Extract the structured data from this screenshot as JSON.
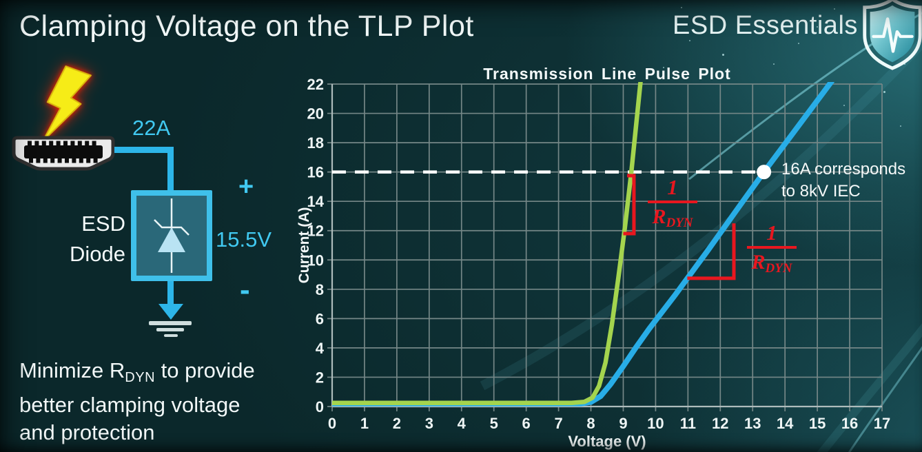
{
  "slide": {
    "title": "Clamping Voltage on the TLP Plot",
    "brand": "ESD Essentials"
  },
  "note": {
    "pre": "Minimize R",
    "sub": "DYN",
    "post": " to provide",
    "line2": "better clamping voltage",
    "line3": "and protection"
  },
  "diagram": {
    "surge_current": "22A",
    "device_line1": "ESD",
    "device_line2": "Diode",
    "plus_sign": "+",
    "minus_sign": "-",
    "clamp_voltage": "15.5V"
  },
  "chart_data": {
    "type": "line",
    "title": "Transmission Line Pulse Plot",
    "xlabel": "Voltage (V)",
    "ylabel": "Current (A)",
    "xlim": [
      0,
      17
    ],
    "ylim": [
      0,
      22
    ],
    "x_ticks": [
      0,
      1,
      2,
      3,
      4,
      5,
      6,
      7,
      8,
      9,
      10,
      11,
      12,
      13,
      14,
      15,
      16,
      17
    ],
    "y_ticks": [
      0,
      2,
      4,
      6,
      8,
      10,
      12,
      14,
      16,
      18,
      20,
      22
    ],
    "grid": true,
    "colors": {
      "grid": "#758787",
      "axis": "#aebcbc",
      "accent_red": "#e8171f",
      "reference": "#ffffff"
    },
    "series": [
      {
        "name": "green-curve-low-rdyn",
        "color": "#a4d44e",
        "width": 6.5,
        "points": [
          [
            0,
            0.25
          ],
          [
            7.4,
            0.25
          ],
          [
            7.8,
            0.32
          ],
          [
            8.05,
            0.6
          ],
          [
            8.25,
            1.4
          ],
          [
            8.45,
            3.0
          ],
          [
            8.65,
            5.6
          ],
          [
            8.85,
            8.8
          ],
          [
            9.05,
            12.2
          ],
          [
            9.25,
            16.0
          ],
          [
            9.55,
            22.5
          ]
        ]
      },
      {
        "name": "blue-curve-high-rdyn",
        "color": "#28ade7",
        "width": 8,
        "points": [
          [
            0,
            0.2
          ],
          [
            7.7,
            0.2
          ],
          [
            8.0,
            0.3
          ],
          [
            8.3,
            0.7
          ],
          [
            8.6,
            1.5
          ],
          [
            9.0,
            2.75
          ],
          [
            9.4,
            4.05
          ],
          [
            9.8,
            5.3
          ],
          [
            10.6,
            7.6
          ],
          [
            11.6,
            10.6
          ],
          [
            12.6,
            13.7
          ],
          [
            13.35,
            16.0
          ],
          [
            15.55,
            22.5
          ]
        ]
      }
    ],
    "reference": {
      "y": 16,
      "dash_to_x": 13.35,
      "marker": {
        "x": 13.35,
        "y": 16
      },
      "label_line1": "16A corresponds",
      "label_line2": "to 8kV IEC"
    },
    "slope_indicators": [
      {
        "x": 9.33,
        "y_top": 15.75,
        "y_bottom": 11.8,
        "tick_x": 9.0,
        "top_tick_x": 9.12
      },
      {
        "x": 12.42,
        "y_top": 12.5,
        "y_bottom": 8.75,
        "tick_x": 10.98,
        "top_tick_x": 12.42
      }
    ],
    "slope_labels": [
      {
        "num": "1",
        "den": "R",
        "den_sub": "DYN"
      },
      {
        "num": "1",
        "den": "R",
        "den_sub": "DYN"
      }
    ]
  }
}
